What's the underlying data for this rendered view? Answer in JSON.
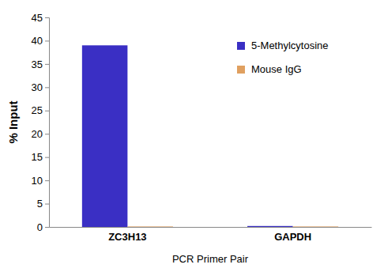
{
  "chart_data": {
    "type": "bar",
    "x_label": "PCR Primer Pair",
    "y_label": "% Input",
    "categories": [
      "ZC3H13",
      "GAPDH"
    ],
    "series": [
      {
        "name": "5-Methylcytosine",
        "color": "#3a2fc4",
        "values": [
          39,
          0.2
        ]
      },
      {
        "name": "Mouse IgG",
        "color": "#e0a060",
        "values": [
          0.1,
          0.1
        ]
      }
    ],
    "ylim": [
      0,
      45
    ],
    "yticks": [
      0,
      5,
      10,
      15,
      20,
      25,
      30,
      35,
      40,
      45
    ],
    "grid": false,
    "legend": "upper right"
  }
}
